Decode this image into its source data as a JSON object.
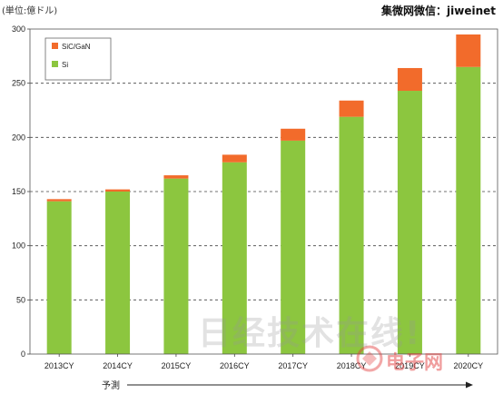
{
  "header": {
    "unit_label": "(単位:億ドル)",
    "source_label": "集微网微信：jiweinet"
  },
  "footer": {
    "forecast_label": "予測"
  },
  "watermarks": {
    "main": "日经技术在线!",
    "secondary": "电子网"
  },
  "chart_data": {
    "type": "bar",
    "stacked": true,
    "categories": [
      "2013CY",
      "2014CY",
      "2015CY",
      "2016CY",
      "2017CY",
      "2018CY",
      "2019CY",
      "2020CY"
    ],
    "series": [
      {
        "name": "Si",
        "color": "#8cc63f",
        "values": [
          141,
          150,
          162,
          177,
          197,
          219,
          243,
          265
        ]
      },
      {
        "name": "SiC/GaN",
        "color": "#f26b2b",
        "values": [
          2,
          2,
          3,
          7,
          11,
          15,
          21,
          30
        ]
      }
    ],
    "ylim": [
      0,
      300
    ],
    "yticks": [
      0,
      50,
      100,
      150,
      200,
      250,
      300
    ],
    "grid": true,
    "legend_position": "top-left"
  }
}
